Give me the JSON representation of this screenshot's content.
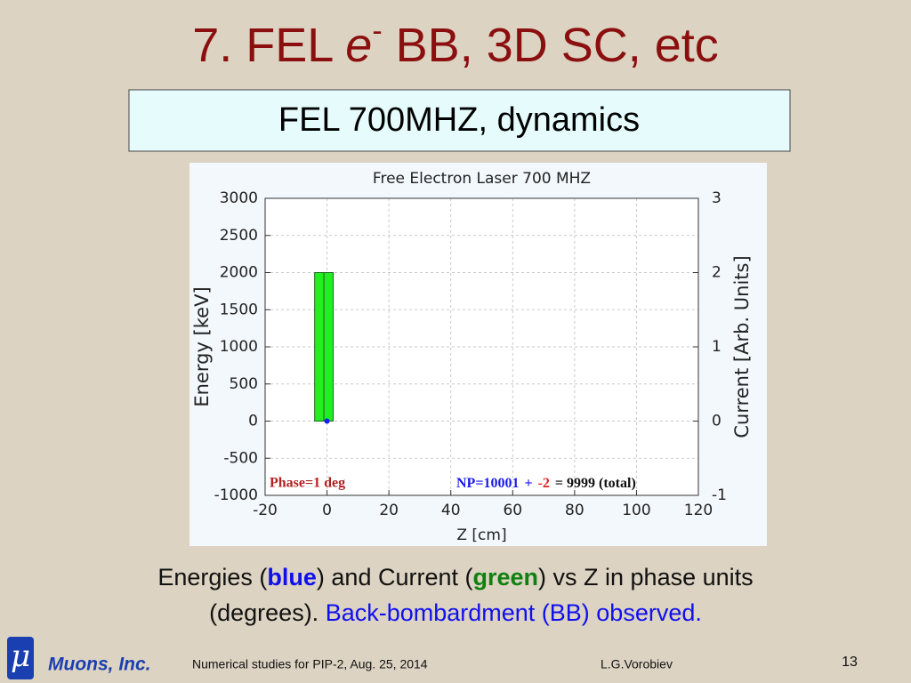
{
  "slide": {
    "title": {
      "main": "7. FEL ",
      "italic": "e",
      "sup": "-",
      "rest": " BB, 3D SC, etc"
    },
    "subtitle": "FEL 700MHZ, dynamics",
    "caption": {
      "part1": "Energies (",
      "blue": "blue",
      "part2": ") and Current (",
      "green": "green",
      "part3": ") vs Z in phase units",
      "part4": "(degrees). ",
      "part5": "Back-bombardment (BB) observed."
    },
    "footer": {
      "logo": "μ",
      "company": "Muons, Inc.",
      "event": "Numerical studies for PIP-2, Aug. 25, 2014",
      "author": "L.G.Vorobiev",
      "page": "13"
    }
  },
  "chart_data": {
    "type": "histogram",
    "title": "Free Electron Laser 700 MHZ",
    "x_label": "Z [cm]",
    "y_label": "Energy [keV]",
    "y2_label": "Current [Arb. Units]",
    "xlim": [
      -20,
      120
    ],
    "xticks": [
      -20,
      0,
      20,
      40,
      60,
      80,
      100,
      120
    ],
    "ylim": [
      -1000,
      3000
    ],
    "yticks": [
      -1000,
      -500,
      0,
      500,
      1000,
      1500,
      2000,
      2500,
      3000
    ],
    "y2lim": [
      -1,
      3
    ],
    "y2ticks": [
      -1,
      0,
      1,
      2,
      3
    ],
    "grid": true,
    "bins": [
      -4,
      -1,
      2
    ],
    "counts": [
      2,
      2
    ],
    "axis": "y2",
    "color": "#22ee22",
    "points": {
      "x": [
        0
      ],
      "y": [
        0
      ],
      "color": "#1a1aff"
    },
    "annotations": {
      "phase": "Phase=1 deg",
      "np": "NP=10001",
      "plus": "+",
      "lost": "-2",
      "total": "= 9999 (total)"
    }
  }
}
